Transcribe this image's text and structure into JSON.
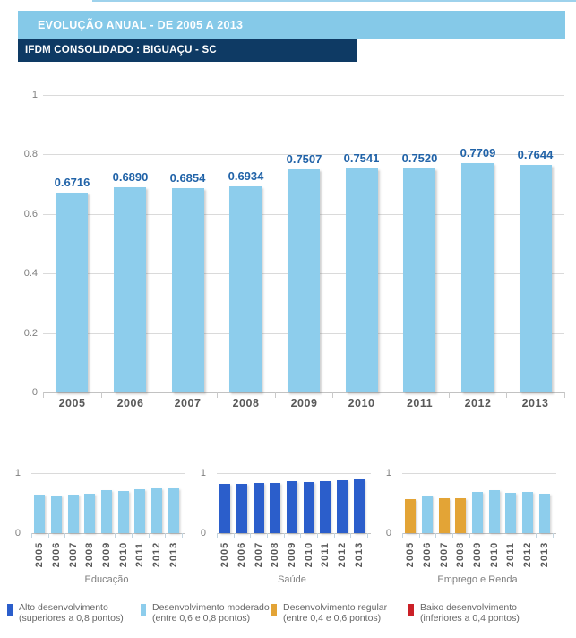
{
  "accent_line_color": "#9ed2ec",
  "header": {
    "title": "EVOLUÇÃO ANUAL - DE 2005 A 2013",
    "title_bg": "#85c9e8",
    "subtitle": "IFDM CONSOLIDADO : BIGUAÇU - SC",
    "subtitle_bg": "#0e3a64"
  },
  "palette": {
    "alto": "#2b5ecb",
    "moderado": "#8dcdec",
    "regular": "#e3a436",
    "baixo": "#cb2027"
  },
  "chart_data": [
    {
      "name": "ifdm-consolidado",
      "type": "bar",
      "categories": [
        "2005",
        "2006",
        "2007",
        "2008",
        "2009",
        "2010",
        "2011",
        "2012",
        "2013"
      ],
      "values": [
        0.6716,
        0.689,
        0.6854,
        0.6934,
        0.7507,
        0.7541,
        0.752,
        0.7709,
        0.7644
      ],
      "data_labels": [
        "0.6716",
        "0.6890",
        "0.6854",
        "0.6934",
        "0.7507",
        "0.7541",
        "0.7520",
        "0.7709",
        "0.7644"
      ],
      "levels": [
        "moderado",
        "moderado",
        "moderado",
        "moderado",
        "moderado",
        "moderado",
        "moderado",
        "moderado",
        "moderado"
      ],
      "yticks": [
        1,
        0.8,
        0.6,
        0.4,
        0.2,
        0
      ],
      "ylim": [
        0,
        1
      ],
      "grid": true,
      "legend_position": "none"
    },
    {
      "name": "educacao",
      "title": "Educação",
      "type": "bar",
      "categories": [
        "2005",
        "2006",
        "2007",
        "2008",
        "2009",
        "2010",
        "2011",
        "2012",
        "2013"
      ],
      "values": [
        0.635,
        0.625,
        0.64,
        0.655,
        0.71,
        0.705,
        0.725,
        0.745,
        0.74
      ],
      "levels": [
        "moderado",
        "moderado",
        "moderado",
        "moderado",
        "moderado",
        "moderado",
        "moderado",
        "moderado",
        "moderado"
      ],
      "yticks": [
        1,
        0
      ],
      "ylim": [
        0,
        1
      ],
      "grid": true
    },
    {
      "name": "saude",
      "title": "Saúde",
      "type": "bar",
      "categories": [
        "2005",
        "2006",
        "2007",
        "2008",
        "2009",
        "2010",
        "2011",
        "2012",
        "2013"
      ],
      "values": [
        0.815,
        0.815,
        0.83,
        0.84,
        0.86,
        0.845,
        0.86,
        0.88,
        0.895
      ],
      "levels": [
        "alto",
        "alto",
        "alto",
        "alto",
        "alto",
        "alto",
        "alto",
        "alto",
        "alto"
      ],
      "yticks": [
        1,
        0
      ],
      "ylim": [
        0,
        1
      ],
      "grid": true
    },
    {
      "name": "emprego-renda",
      "title": "Emprego e Renda",
      "type": "bar",
      "categories": [
        "2005",
        "2006",
        "2007",
        "2008",
        "2009",
        "2010",
        "2011",
        "2012",
        "2013"
      ],
      "values": [
        0.565,
        0.627,
        0.586,
        0.585,
        0.682,
        0.712,
        0.671,
        0.688,
        0.658
      ],
      "levels": [
        "regular",
        "moderado",
        "regular",
        "regular",
        "moderado",
        "moderado",
        "moderado",
        "moderado",
        "moderado"
      ],
      "yticks": [
        1,
        0
      ],
      "ylim": [
        0,
        1
      ],
      "grid": true
    }
  ],
  "legend": {
    "items": [
      {
        "level": "alto",
        "label": "Alto desenvolvimento",
        "range": "(superiores a 0,8 pontos)"
      },
      {
        "level": "moderado",
        "label": "Desenvolvimento moderado",
        "range": "(entre 0,6 e 0,8 pontos)"
      },
      {
        "level": "regular",
        "label": "Desenvolvimento regular",
        "range": "(entre 0,4 e 0,6 pontos)"
      },
      {
        "level": "baixo",
        "label": "Baixo desenvolvimento",
        "range": "(inferiores a 0,4 pontos)"
      }
    ]
  }
}
